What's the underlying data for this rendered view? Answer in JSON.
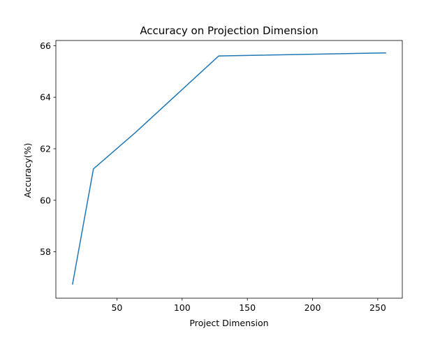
{
  "chart_data": {
    "type": "line",
    "title": "Accuracy on Projection Dimension",
    "xlabel": "Project Dimension",
    "ylabel": "Accuracy(%)",
    "x": [
      16,
      32,
      64,
      128,
      256
    ],
    "series": [
      {
        "values": [
          56.75,
          61.22,
          62.62,
          65.6,
          65.72
        ]
      }
    ],
    "xlim": [
      3.2,
      268.8
    ],
    "ylim": [
      56.2,
      66.2
    ],
    "xticks": [
      50,
      100,
      150,
      200,
      250
    ],
    "yticks": [
      58,
      60,
      62,
      64,
      66
    ],
    "xtick_labels": [
      "50",
      "100",
      "150",
      "200",
      "250"
    ],
    "ytick_labels": [
      "58",
      "60",
      "62",
      "64",
      "66"
    ],
    "grid": false,
    "line_color": "#1f77b4"
  }
}
